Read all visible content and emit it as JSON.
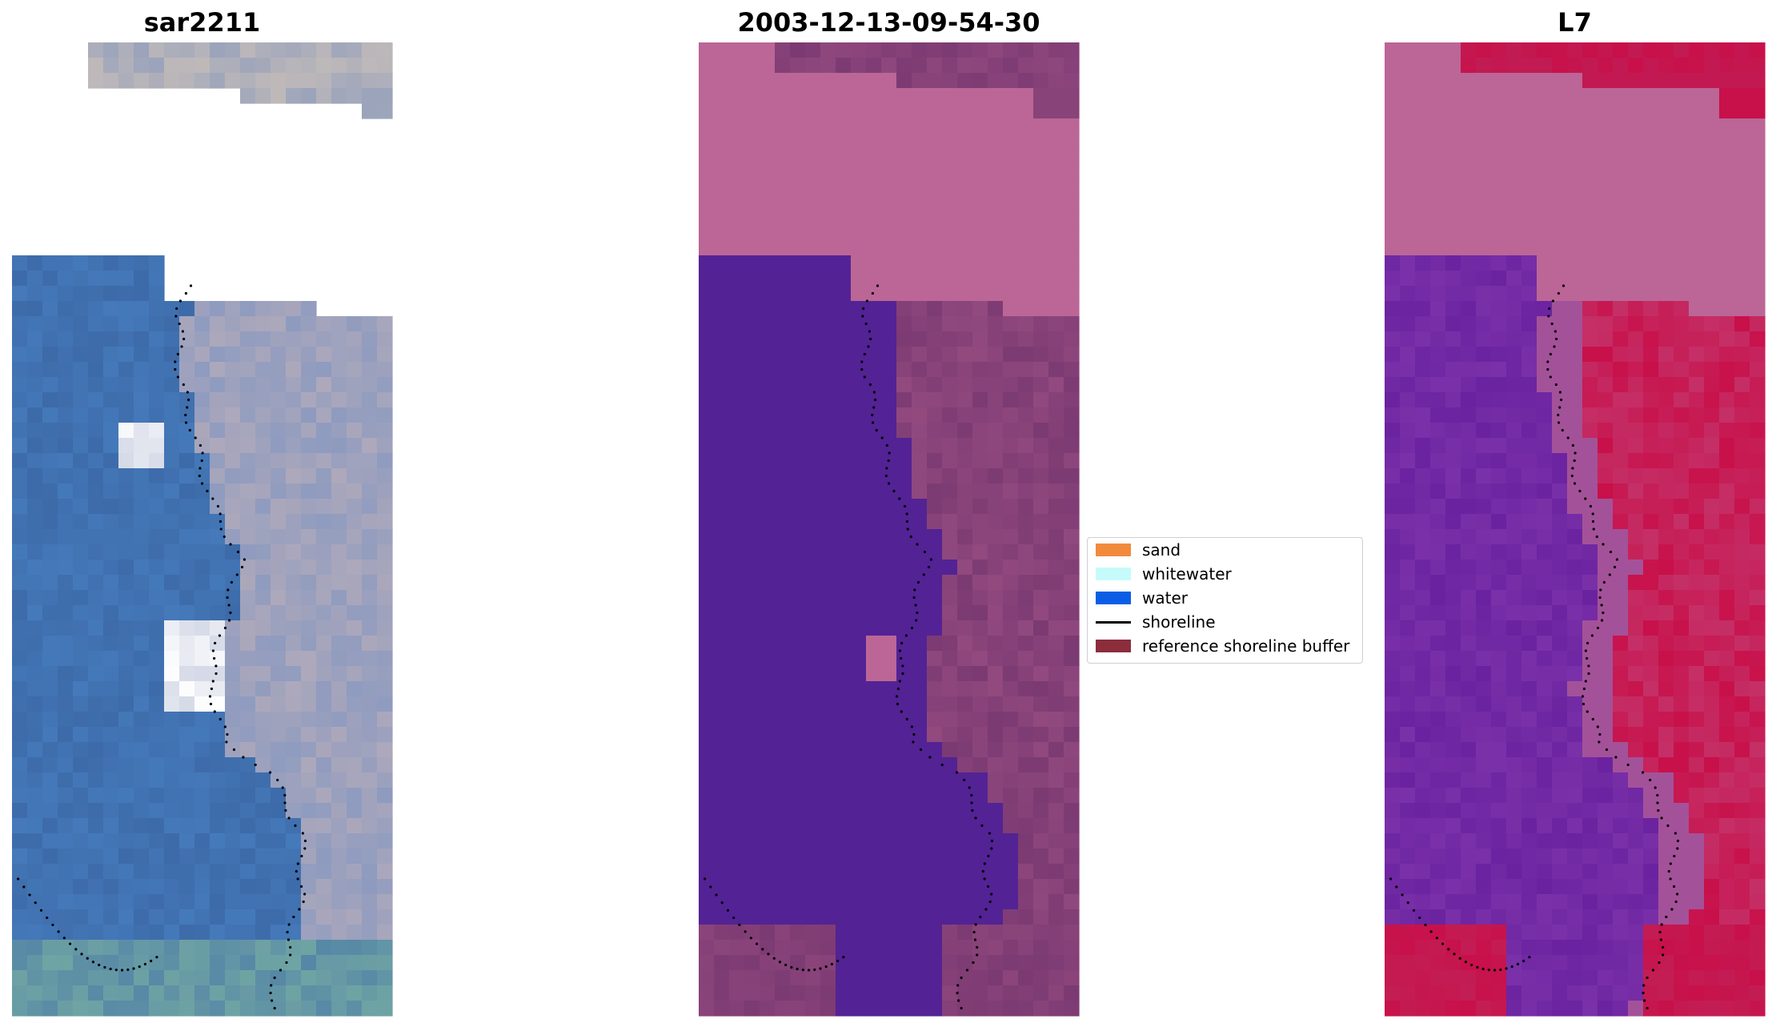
{
  "figure": {
    "panels": [
      {
        "id": "rgb",
        "title": "sar2211"
      },
      {
        "id": "classified",
        "title": "2003-12-13-09-54-30"
      },
      {
        "id": "index",
        "title": "L7"
      }
    ]
  },
  "legend": {
    "items": [
      {
        "label": "sand",
        "kind": "patch",
        "color": "#f28a3c"
      },
      {
        "label": "whitewater",
        "kind": "patch",
        "color": "#c6fbfb"
      },
      {
        "label": "water",
        "kind": "patch",
        "color": "#0a5ee6"
      },
      {
        "label": "shoreline",
        "kind": "line",
        "color": "#000000"
      },
      {
        "label": "reference shoreline buffer",
        "kind": "patch",
        "color": "#8c2d3c"
      }
    ]
  },
  "colors": {
    "rgb_water": "#3d6aa8",
    "rgb_land": "#8e9bbf",
    "rgb_bright_patch": "#ffffff",
    "classified_water": "#532295",
    "classified_land": "#7b3a72",
    "classified_buffer": "#bb6696",
    "index_water": "#6a22a0",
    "index_land": "#c8104a",
    "index_buffer": "#bb6696",
    "shoreline_dots": "#000000"
  }
}
